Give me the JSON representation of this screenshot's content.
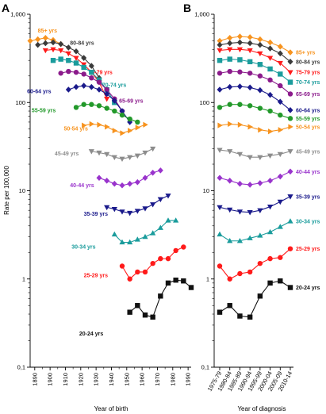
{
  "chart_data": [
    {
      "type": "line",
      "panel": "A",
      "xlabel": "Year of birth",
      "ylabel": "Rate per 100,000",
      "yscale": "log",
      "ylim": [
        0.1,
        1000
      ],
      "yticks": [
        "0,1",
        "1",
        "10",
        "100",
        "1,000"
      ],
      "xlim": [
        1887,
        1992
      ],
      "xticks": [
        "1890",
        "1900",
        "1910",
        "1920",
        "1930",
        "1940",
        "1950",
        "1960",
        "1970",
        "1980",
        "1990"
      ],
      "grid": false,
      "series": [
        {
          "name": "85+ yrs",
          "color": "#f7931e",
          "marker": "diamond",
          "label_x": 1892,
          "label_y": 620,
          "x": [
            1887,
            1892,
            1897,
            1902,
            1907
          ],
          "y": [
            500,
            520,
            540,
            510,
            460
          ]
        },
        {
          "name": "80-84 yrs",
          "color": "#3a3a3a",
          "marker": "diamond",
          "label_x": 1913,
          "label_y": 450,
          "x": [
            1892,
            1897,
            1902,
            1907,
            1912,
            1917,
            1922,
            1927,
            1932
          ],
          "y": [
            450,
            470,
            480,
            460,
            420,
            380,
            320,
            260,
            190
          ]
        },
        {
          "name": "75-79 yrs",
          "color": "#ff1a1a",
          "marker": "triangle-down",
          "label_x": 1925,
          "label_y": 210,
          "x": [
            1897,
            1902,
            1907,
            1912,
            1917,
            1922,
            1927,
            1932,
            1937
          ],
          "y": [
            390,
            400,
            390,
            360,
            320,
            270,
            220,
            170,
            110
          ]
        },
        {
          "name": "70-74 yrs",
          "color": "#1a9c9c",
          "marker": "square",
          "label_x": 1934,
          "label_y": 150,
          "x": [
            1902,
            1907,
            1912,
            1917,
            1922,
            1927,
            1932,
            1937,
            1942
          ],
          "y": [
            300,
            310,
            300,
            280,
            250,
            220,
            180,
            140,
            100
          ]
        },
        {
          "name": "65-69 yrs",
          "color": "#8b1a8b",
          "marker": "circle",
          "label_x": 1945,
          "label_y": 100,
          "x": [
            1907,
            1912,
            1917,
            1922,
            1927,
            1932,
            1937,
            1942,
            1947
          ],
          "y": [
            215,
            225,
            220,
            210,
            190,
            170,
            140,
            110,
            80
          ]
        },
        {
          "name": "60-64 yrs",
          "color": "#1a1a8b",
          "marker": "diamond",
          "label_x": 1885,
          "label_y": 127,
          "x": [
            1912,
            1917,
            1922,
            1927,
            1932,
            1937,
            1942,
            1947,
            1952
          ],
          "y": [
            140,
            150,
            155,
            150,
            140,
            125,
            105,
            80,
            60
          ]
        },
        {
          "name": "55-59 yrs",
          "color": "#22992a",
          "marker": "circle",
          "label_x": 1888,
          "label_y": 78,
          "x": [
            1917,
            1922,
            1927,
            1932,
            1937,
            1942,
            1947,
            1952,
            1957
          ],
          "y": [
            88,
            95,
            95,
            92,
            86,
            80,
            72,
            65,
            60
          ]
        },
        {
          "name": "50-54 yrs",
          "color": "#f7931e",
          "marker": "triangle-right",
          "label_x": 1909,
          "label_y": 48,
          "x": [
            1922,
            1927,
            1932,
            1937,
            1942,
            1947,
            1952,
            1957,
            1962
          ],
          "y": [
            55,
            57,
            56,
            53,
            48,
            45,
            48,
            52,
            56
          ]
        },
        {
          "name": "45-49 yrs",
          "color": "#8c8c8c",
          "marker": "triangle-down",
          "label_x": 1903,
          "label_y": 25,
          "x": [
            1927,
            1932,
            1937,
            1942,
            1947,
            1952,
            1957,
            1962,
            1967
          ],
          "y": [
            28,
            27,
            26,
            24,
            23,
            24,
            25,
            27,
            30
          ]
        },
        {
          "name": "40-44 yrs",
          "color": "#9933cc",
          "marker": "diamond",
          "label_x": 1913,
          "label_y": 11,
          "x": [
            1932,
            1937,
            1942,
            1947,
            1952,
            1957,
            1962,
            1967,
            1972
          ],
          "y": [
            14,
            13,
            12,
            11.5,
            12,
            12.5,
            14,
            16,
            17
          ]
        },
        {
          "name": "35-39 yrs",
          "color": "#1a1a8b",
          "marker": "triangle-down",
          "label_x": 1922,
          "label_y": 5.2,
          "x": [
            1937,
            1942,
            1947,
            1952,
            1957,
            1962,
            1967,
            1972,
            1977
          ],
          "y": [
            6.5,
            6.2,
            5.8,
            5.6,
            5.9,
            6.3,
            7.0,
            8.0,
            8.8
          ]
        },
        {
          "name": "30-34 yrs",
          "color": "#1a9c9c",
          "marker": "triangle-up",
          "label_x": 1914,
          "label_y": 2.2,
          "x": [
            1942,
            1947,
            1952,
            1957,
            1962,
            1967,
            1972,
            1977,
            1982
          ],
          "y": [
            3.2,
            2.6,
            2.6,
            2.8,
            3.0,
            3.3,
            3.8,
            4.6,
            4.6
          ]
        },
        {
          "name": "25-29 yrs",
          "color": "#ff1a1a",
          "marker": "circle",
          "label_x": 1922,
          "label_y": 1.05,
          "x": [
            1947,
            1952,
            1957,
            1962,
            1967,
            1972,
            1977,
            1982,
            1987
          ],
          "y": [
            1.4,
            1.0,
            1.2,
            1.2,
            1.5,
            1.7,
            1.7,
            2.1,
            2.3
          ]
        },
        {
          "name": "20-24 yrs",
          "color": "#111111",
          "marker": "square",
          "label_x": 1919,
          "label_y": 0.23,
          "x": [
            1952,
            1957,
            1962,
            1967,
            1972,
            1977,
            1982,
            1987,
            1992
          ],
          "y": [
            0.42,
            0.5,
            0.39,
            0.37,
            0.64,
            0.9,
            0.97,
            0.95,
            0.8
          ]
        }
      ]
    },
    {
      "type": "line",
      "panel": "B",
      "xlabel": "Year of diagnosis",
      "yscale": "log",
      "ylim": [
        0.1,
        1000
      ],
      "yticks": [
        "0,1",
        "1",
        "10",
        "100",
        "1,000"
      ],
      "xticks": [
        "1975-79",
        "1980-84",
        "1985-89",
        "1990-94",
        "1995-99",
        "2000-04",
        "2005-09",
        "2010-14"
      ],
      "grid": false,
      "series": [
        {
          "name": "85+ yrs",
          "color": "#f7931e",
          "marker": "diamond",
          "y": [
            500,
            540,
            560,
            550,
            520,
            480,
            430,
            370
          ]
        },
        {
          "name": "80-84 yrs",
          "color": "#3a3a3a",
          "marker": "diamond",
          "y": [
            450,
            470,
            480,
            470,
            450,
            410,
            360,
            290
          ]
        },
        {
          "name": "75-79 yrs",
          "color": "#ff1a1a",
          "marker": "triangle-down",
          "y": [
            390,
            400,
            400,
            390,
            360,
            320,
            280,
            220
          ]
        },
        {
          "name": "70-74 yrs",
          "color": "#1a9c9c",
          "marker": "square",
          "y": [
            300,
            310,
            305,
            290,
            270,
            240,
            210,
            170
          ]
        },
        {
          "name": "65-69 yrs",
          "color": "#8b1a8b",
          "marker": "circle",
          "y": [
            215,
            225,
            222,
            215,
            200,
            180,
            155,
            125
          ]
        },
        {
          "name": "60-64 yrs",
          "color": "#1a1a8b",
          "marker": "diamond",
          "y": [
            140,
            150,
            152,
            148,
            138,
            122,
            102,
            82
          ]
        },
        {
          "name": "55-59 yrs",
          "color": "#22992a",
          "marker": "circle",
          "y": [
            88,
            95,
            95,
            92,
            86,
            80,
            72,
            66
          ]
        },
        {
          "name": "50-54 yrs",
          "color": "#f7931e",
          "marker": "triangle-right",
          "y": [
            55,
            57,
            56,
            53,
            49,
            47,
            49,
            53
          ]
        },
        {
          "name": "45-49 yrs",
          "color": "#8c8c8c",
          "marker": "triangle-down",
          "y": [
            29,
            28,
            26,
            24,
            24,
            25,
            26,
            28
          ]
        },
        {
          "name": "40-44 yrs",
          "color": "#9933cc",
          "marker": "diamond",
          "y": [
            14,
            13,
            12,
            11.7,
            12.2,
            13,
            14.5,
            16.5
          ]
        },
        {
          "name": "35-39 yrs",
          "color": "#1a1a8b",
          "marker": "triangle-down",
          "y": [
            6.5,
            6.1,
            5.8,
            5.7,
            6.0,
            6.6,
            7.5,
            8.6
          ]
        },
        {
          "name": "30-34 yrs",
          "color": "#1a9c9c",
          "marker": "triangle-up",
          "y": [
            3.2,
            2.7,
            2.7,
            2.9,
            3.1,
            3.4,
            3.9,
            4.5
          ]
        },
        {
          "name": "25-29 yrs",
          "color": "#ff1a1a",
          "marker": "circle",
          "y": [
            1.4,
            1.0,
            1.15,
            1.2,
            1.5,
            1.7,
            1.75,
            2.2
          ]
        },
        {
          "name": "20-24 yrs",
          "color": "#111111",
          "marker": "square",
          "y": [
            0.42,
            0.5,
            0.38,
            0.37,
            0.64,
            0.9,
            0.95,
            0.8
          ]
        }
      ]
    }
  ]
}
